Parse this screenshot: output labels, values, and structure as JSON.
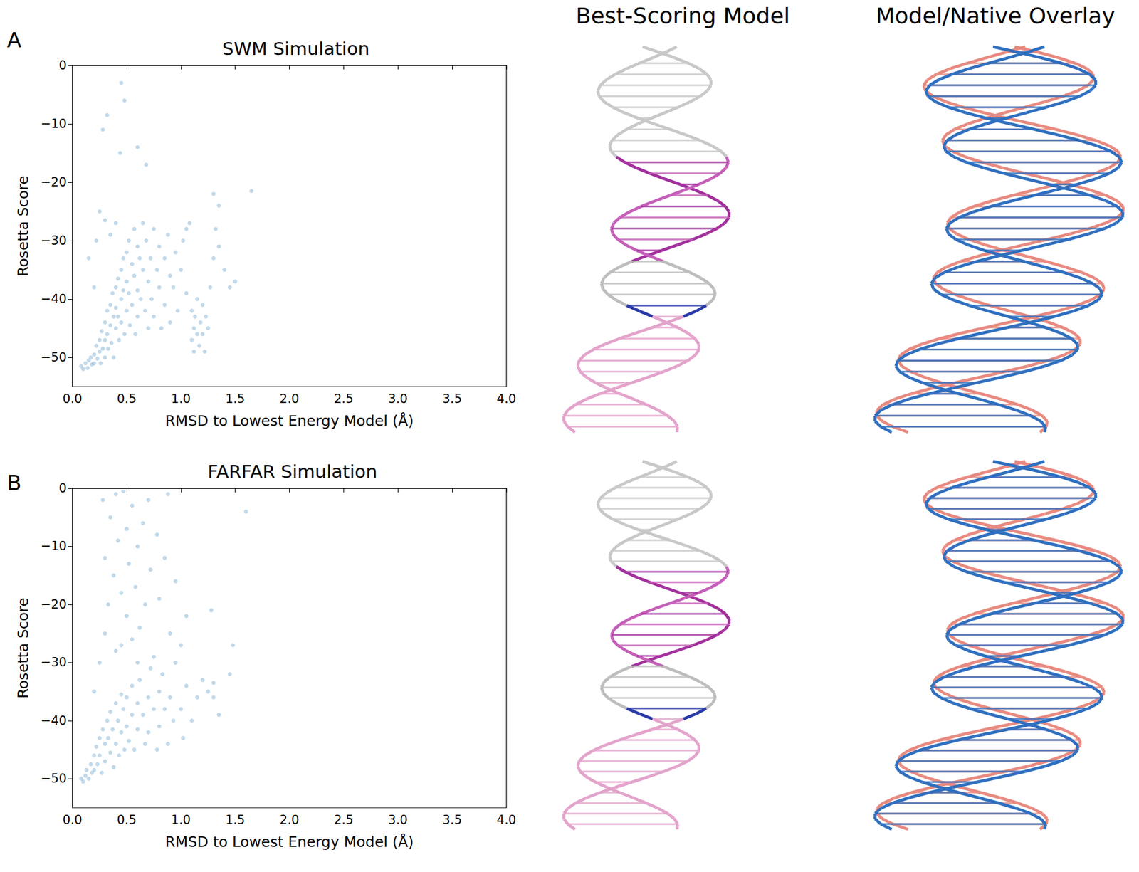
{
  "column_titles": [
    "Best-Scoring Model",
    "Model/Native Overlay"
  ],
  "chart_data": [
    {
      "type": "scatter",
      "title": "SWM Simulation",
      "annotations": [
        "A"
      ],
      "x_label": "RMSD to Lowest Energy Model (Å)",
      "y_label": "Rosetta Score",
      "color": "#1f77b4",
      "marker": "circle",
      "xlim": [
        0,
        4
      ],
      "xticks": [
        {
          "value": 0,
          "label": "0.0"
        },
        {
          "value": 0.5,
          "label": "0.5"
        },
        {
          "value": 1,
          "label": "1.0"
        },
        {
          "value": 1.5,
          "label": "1.5"
        },
        {
          "value": 2,
          "label": "2.0"
        },
        {
          "value": 2.5,
          "label": "2.5"
        },
        {
          "value": 3,
          "label": "3.0"
        },
        {
          "value": 3.5,
          "label": "3.5"
        },
        {
          "value": 4,
          "label": "4.0"
        }
      ],
      "ylim": [
        -55,
        0
      ],
      "yticks": [
        {
          "value": -50,
          "label": "−50"
        },
        {
          "value": -40,
          "label": "−40"
        },
        {
          "value": -30,
          "label": "−30"
        },
        {
          "value": -20,
          "label": "−20"
        },
        {
          "value": -10,
          "label": "−10"
        },
        0
      ],
      "x": [
        0.08,
        0.1,
        0.12,
        0.14,
        0.15,
        0.17,
        0.18,
        0.2,
        0.2,
        0.22,
        0.23,
        0.25,
        0.25,
        0.26,
        0.27,
        0.28,
        0.3,
        0.3,
        0.3,
        0.32,
        0.32,
        0.33,
        0.35,
        0.35,
        0.36,
        0.37,
        0.38,
        0.38,
        0.4,
        0.4,
        0.4,
        0.42,
        0.42,
        0.43,
        0.45,
        0.45,
        0.45,
        0.47,
        0.47,
        0.48,
        0.5,
        0.5,
        0.5,
        0.52,
        0.52,
        0.53,
        0.55,
        0.55,
        0.57,
        0.57,
        0.58,
        0.6,
        0.6,
        0.6,
        0.62,
        0.63,
        0.65,
        0.65,
        0.67,
        0.68,
        0.7,
        0.7,
        0.72,
        0.73,
        0.75,
        0.75,
        0.78,
        0.8,
        0.8,
        0.82,
        0.85,
        0.85,
        0.88,
        0.9,
        0.9,
        0.93,
        0.95,
        0.97,
        1.0,
        1.02,
        1.05,
        1.05,
        1.08,
        1.1,
        1.1,
        1.12,
        1.12,
        1.13,
        1.15,
        1.15,
        1.17,
        1.18,
        1.2,
        1.2,
        1.22,
        1.23,
        1.25,
        1.27,
        1.3,
        1.32,
        1.35,
        1.4,
        1.45,
        1.5,
        0.25,
        0.3,
        0.28,
        0.32,
        0.45,
        0.48,
        0.44,
        0.6,
        0.68,
        1.3,
        1.35,
        1.65,
        0.15,
        0.2,
        0.22,
        0.35,
        0.4
      ],
      "values": [
        -51.5,
        -52,
        -51,
        -51.8,
        -50.5,
        -50,
        -51.2,
        -49.5,
        -51,
        -48,
        -50.2,
        -47,
        -49,
        -51,
        -45.5,
        -48.5,
        -44,
        -47,
        -50,
        -42,
        -46,
        -48.5,
        -41,
        -44.5,
        -47.5,
        -39,
        -43,
        -50,
        -38,
        -41.5,
        -45,
        -36.5,
        -43,
        -47,
        -35,
        -40,
        -44,
        -33,
        -38.5,
        -46,
        -32,
        -37,
        -42,
        -30,
        -39,
        -44.5,
        -34,
        -41,
        -28,
        -36,
        -46,
        -31,
        -38.5,
        -43,
        -33,
        -40,
        -27,
        -35,
        -42,
        -30,
        -37,
        -45,
        -33,
        -40,
        -28,
        -43,
        -35,
        -31,
        -38,
        -45,
        -33,
        -41,
        -29,
        -36,
        -44,
        -38,
        -32,
        -42,
        -35,
        -30,
        -39,
        -28,
        -27,
        -42,
        -47,
        -45,
        -49,
        -43,
        -46,
        -40,
        -48,
        -44,
        -46,
        -41,
        -49,
        -43,
        -45,
        -38,
        -33,
        -28,
        -31,
        -35,
        -38,
        -37,
        -25,
        -26.5,
        -11,
        -8.5,
        -3,
        -6,
        -15,
        -14,
        -17,
        -22,
        -24,
        -21.5,
        -33,
        -38,
        -30,
        -29,
        -27
      ]
    },
    {
      "type": "scatter",
      "title": "FARFAR Simulation",
      "annotations": [
        "B"
      ],
      "x_label": "RMSD to Lowest Energy Model (Å)",
      "y_label": "Rosetta Score",
      "color": "#1f77b4",
      "marker": "circle",
      "xlim": [
        0,
        4
      ],
      "xticks": [
        {
          "value": 0,
          "label": "0.0"
        },
        {
          "value": 0.5,
          "label": "0.5"
        },
        {
          "value": 1,
          "label": "1.0"
        },
        {
          "value": 1.5,
          "label": "1.5"
        },
        {
          "value": 2,
          "label": "2.0"
        },
        {
          "value": 2.5,
          "label": "2.5"
        },
        {
          "value": 3,
          "label": "3.0"
        },
        {
          "value": 3.5,
          "label": "3.5"
        },
        {
          "value": 4,
          "label": "4.0"
        }
      ],
      "ylim": [
        -55,
        0
      ],
      "yticks": [
        {
          "value": -50,
          "label": "−50"
        },
        {
          "value": -40,
          "label": "−40"
        },
        {
          "value": -30,
          "label": "−30"
        },
        {
          "value": -20,
          "label": "−20"
        },
        {
          "value": -10,
          "label": "−10"
        },
        0
      ],
      "x": [
        0.08,
        0.1,
        0.12,
        0.13,
        0.15,
        0.17,
        0.18,
        0.2,
        0.2,
        0.22,
        0.23,
        0.25,
        0.25,
        0.27,
        0.28,
        0.3,
        0.3,
        0.32,
        0.33,
        0.35,
        0.35,
        0.37,
        0.38,
        0.4,
        0.4,
        0.42,
        0.43,
        0.45,
        0.45,
        0.47,
        0.48,
        0.5,
        0.5,
        0.52,
        0.55,
        0.55,
        0.57,
        0.6,
        0.6,
        0.62,
        0.65,
        0.67,
        0.7,
        0.7,
        0.72,
        0.75,
        0.78,
        0.8,
        0.8,
        0.83,
        0.85,
        0.88,
        0.9,
        0.93,
        0.95,
        1.0,
        1.02,
        1.05,
        1.1,
        1.15,
        1.2,
        1.25,
        1.28,
        1.3,
        1.3,
        1.35,
        1.45,
        1.48,
        1.6,
        0.2,
        0.25,
        0.3,
        0.3,
        0.33,
        0.35,
        0.38,
        0.4,
        0.4,
        0.42,
        0.45,
        0.47,
        0.5,
        0.5,
        0.52,
        0.55,
        0.55,
        0.58,
        0.6,
        0.62,
        0.65,
        0.67,
        0.7,
        0.72,
        0.75,
        0.78,
        0.8,
        0.85,
        0.88,
        0.9,
        0.95,
        1.0,
        1.05,
        0.28,
        0.6,
        0.45
      ],
      "values": [
        -50,
        -50.5,
        -49.5,
        -48.5,
        -50,
        -47.5,
        -49,
        -46,
        -48.5,
        -44.5,
        -47.5,
        -43,
        -46,
        -49,
        -41.5,
        -44,
        -47,
        -40,
        -43,
        -45.5,
        -38.5,
        -41.5,
        -48,
        -37,
        -44,
        -40,
        -46,
        -35.5,
        -42,
        -38,
        -45,
        -36,
        -41,
        -43.5,
        -34,
        -39,
        -45,
        -37,
        -41.5,
        -33,
        -39,
        -44,
        -36,
        -42,
        -31,
        -38,
        -45,
        -35,
        -41,
        -32,
        -38,
        -44,
        -36,
        -40,
        -30,
        -38,
        -43,
        -34,
        -40,
        -36,
        -33,
        -35,
        -21,
        -36,
        -33.5,
        -39,
        -32,
        -27,
        -4,
        -35,
        -30,
        -25,
        -12,
        -20,
        -5,
        -15,
        -28,
        -1,
        -9,
        -18,
        -0.5,
        -22,
        -7,
        -13,
        -26,
        -3,
        -17,
        -10,
        -24,
        -6,
        -20,
        -2,
        -14,
        -29,
        -8,
        -19,
        -12,
        -1,
        -25,
        -16,
        -27,
        -22,
        -2,
        -30,
        -27
      ]
    }
  ]
}
